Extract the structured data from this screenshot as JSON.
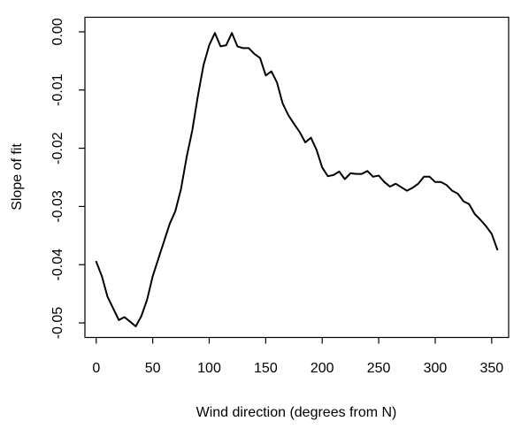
{
  "chart_data": {
    "type": "line",
    "title": "",
    "xlabel": "Wind direction (degrees from N)",
    "ylabel": "Slope of fit",
    "xlim": [
      -10,
      365
    ],
    "ylim": [
      -0.0525,
      0.0025
    ],
    "xticks": [
      0,
      50,
      100,
      150,
      200,
      250,
      300,
      350
    ],
    "xtick_labels": [
      "0",
      "50",
      "100",
      "150",
      "200",
      "250",
      "300",
      "350"
    ],
    "yticks": [
      0.0,
      -0.01,
      -0.02,
      -0.03,
      -0.04,
      -0.05
    ],
    "ytick_labels": [
      "0.00",
      "-0.01",
      "-0.02",
      "-0.03",
      "-0.04",
      "-0.05"
    ],
    "grid": false,
    "legend": "none",
    "line_color": "#000000",
    "series": [
      {
        "x": [
          0,
          5,
          10,
          15,
          20,
          25,
          30,
          35,
          40,
          45,
          50,
          55,
          60,
          65,
          70,
          75,
          80,
          85,
          90,
          95,
          100,
          105,
          110,
          115,
          120,
          125,
          130,
          135,
          140,
          145,
          150,
          155,
          160,
          165,
          170,
          175,
          180,
          185,
          190,
          195,
          200,
          205,
          210,
          215,
          220,
          225,
          230,
          235,
          240,
          245,
          250,
          255,
          260,
          265,
          270,
          275,
          280,
          285,
          290,
          295,
          300,
          305,
          310,
          315,
          320,
          325,
          330,
          335,
          340,
          345,
          350,
          355
        ],
        "y": [
          -0.0395,
          -0.042,
          -0.0455,
          -0.0475,
          -0.0495,
          -0.049,
          -0.0498,
          -0.0506,
          -0.0488,
          -0.046,
          -0.042,
          -0.039,
          -0.036,
          -0.033,
          -0.0308,
          -0.027,
          -0.0215,
          -0.017,
          -0.011,
          -0.0057,
          -0.0023,
          -0.0002,
          -0.0025,
          -0.0023,
          -0.0002,
          -0.0025,
          -0.0028,
          -0.0028,
          -0.0038,
          -0.0045,
          -0.0075,
          -0.0068,
          -0.0087,
          -0.0123,
          -0.0143,
          -0.0158,
          -0.0172,
          -0.019,
          -0.0182,
          -0.0203,
          -0.0233,
          -0.0248,
          -0.0246,
          -0.024,
          -0.0253,
          -0.0243,
          -0.0244,
          -0.0244,
          -0.0239,
          -0.0249,
          -0.0247,
          -0.0258,
          -0.0266,
          -0.0261,
          -0.0267,
          -0.0273,
          -0.0268,
          -0.0261,
          -0.0249,
          -0.0249,
          -0.0258,
          -0.0258,
          -0.0263,
          -0.0273,
          -0.0278,
          -0.0291,
          -0.0296,
          -0.0313,
          -0.0323,
          -0.0334,
          -0.0347,
          -0.0374
        ]
      }
    ]
  }
}
